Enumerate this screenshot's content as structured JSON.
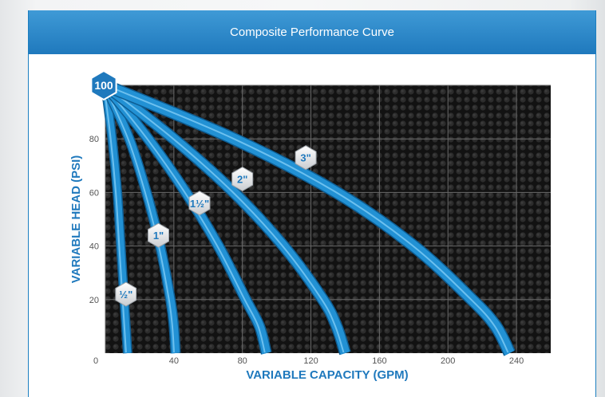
{
  "header": {
    "title": "Composite Performance Curve"
  },
  "colors": {
    "accent": "#1f79bd",
    "curve": "#2291d4",
    "plot_bg": "#141414"
  },
  "chart_data": {
    "type": "line",
    "title": "Composite Performance Curve",
    "xlabel": "VARIABLE CAPACITY (GPM)",
    "ylabel": "VARIABLE HEAD (PSI)",
    "xlim": [
      0,
      260
    ],
    "ylim": [
      0,
      100
    ],
    "x_ticks": [
      "0",
      "40",
      "80",
      "120",
      "160",
      "200",
      "240"
    ],
    "y_ticks": [
      "20",
      "40",
      "60",
      "80"
    ],
    "max_label": "100",
    "grid": true,
    "series": [
      {
        "name": "½\"",
        "x": [
          0,
          4,
          7,
          9,
          11,
          12,
          13
        ],
        "y": [
          100,
          80,
          60,
          40,
          20,
          10,
          0
        ]
      },
      {
        "name": "1\"",
        "x": [
          0,
          14,
          24,
          32,
          38,
          40,
          41
        ],
        "y": [
          100,
          80,
          60,
          40,
          20,
          10,
          0
        ]
      },
      {
        "name": "1½\"",
        "x": [
          0,
          25,
          47,
          66,
          82,
          90,
          94
        ],
        "y": [
          100,
          80,
          60,
          40,
          20,
          10,
          0
        ]
      },
      {
        "name": "2\"",
        "x": [
          0,
          40,
          75,
          104,
          127,
          135,
          140
        ],
        "y": [
          100,
          80,
          60,
          40,
          20,
          10,
          0
        ]
      },
      {
        "name": "3\"",
        "x": [
          0,
          75,
          135,
          180,
          214,
          228,
          236
        ],
        "y": [
          100,
          80,
          60,
          40,
          20,
          10,
          0
        ]
      }
    ],
    "badge_positions": [
      {
        "x": 12,
        "y": 22
      },
      {
        "x": 31,
        "y": 44
      },
      {
        "x": 55,
        "y": 56
      },
      {
        "x": 80,
        "y": 65
      },
      {
        "x": 117,
        "y": 73
      }
    ]
  }
}
